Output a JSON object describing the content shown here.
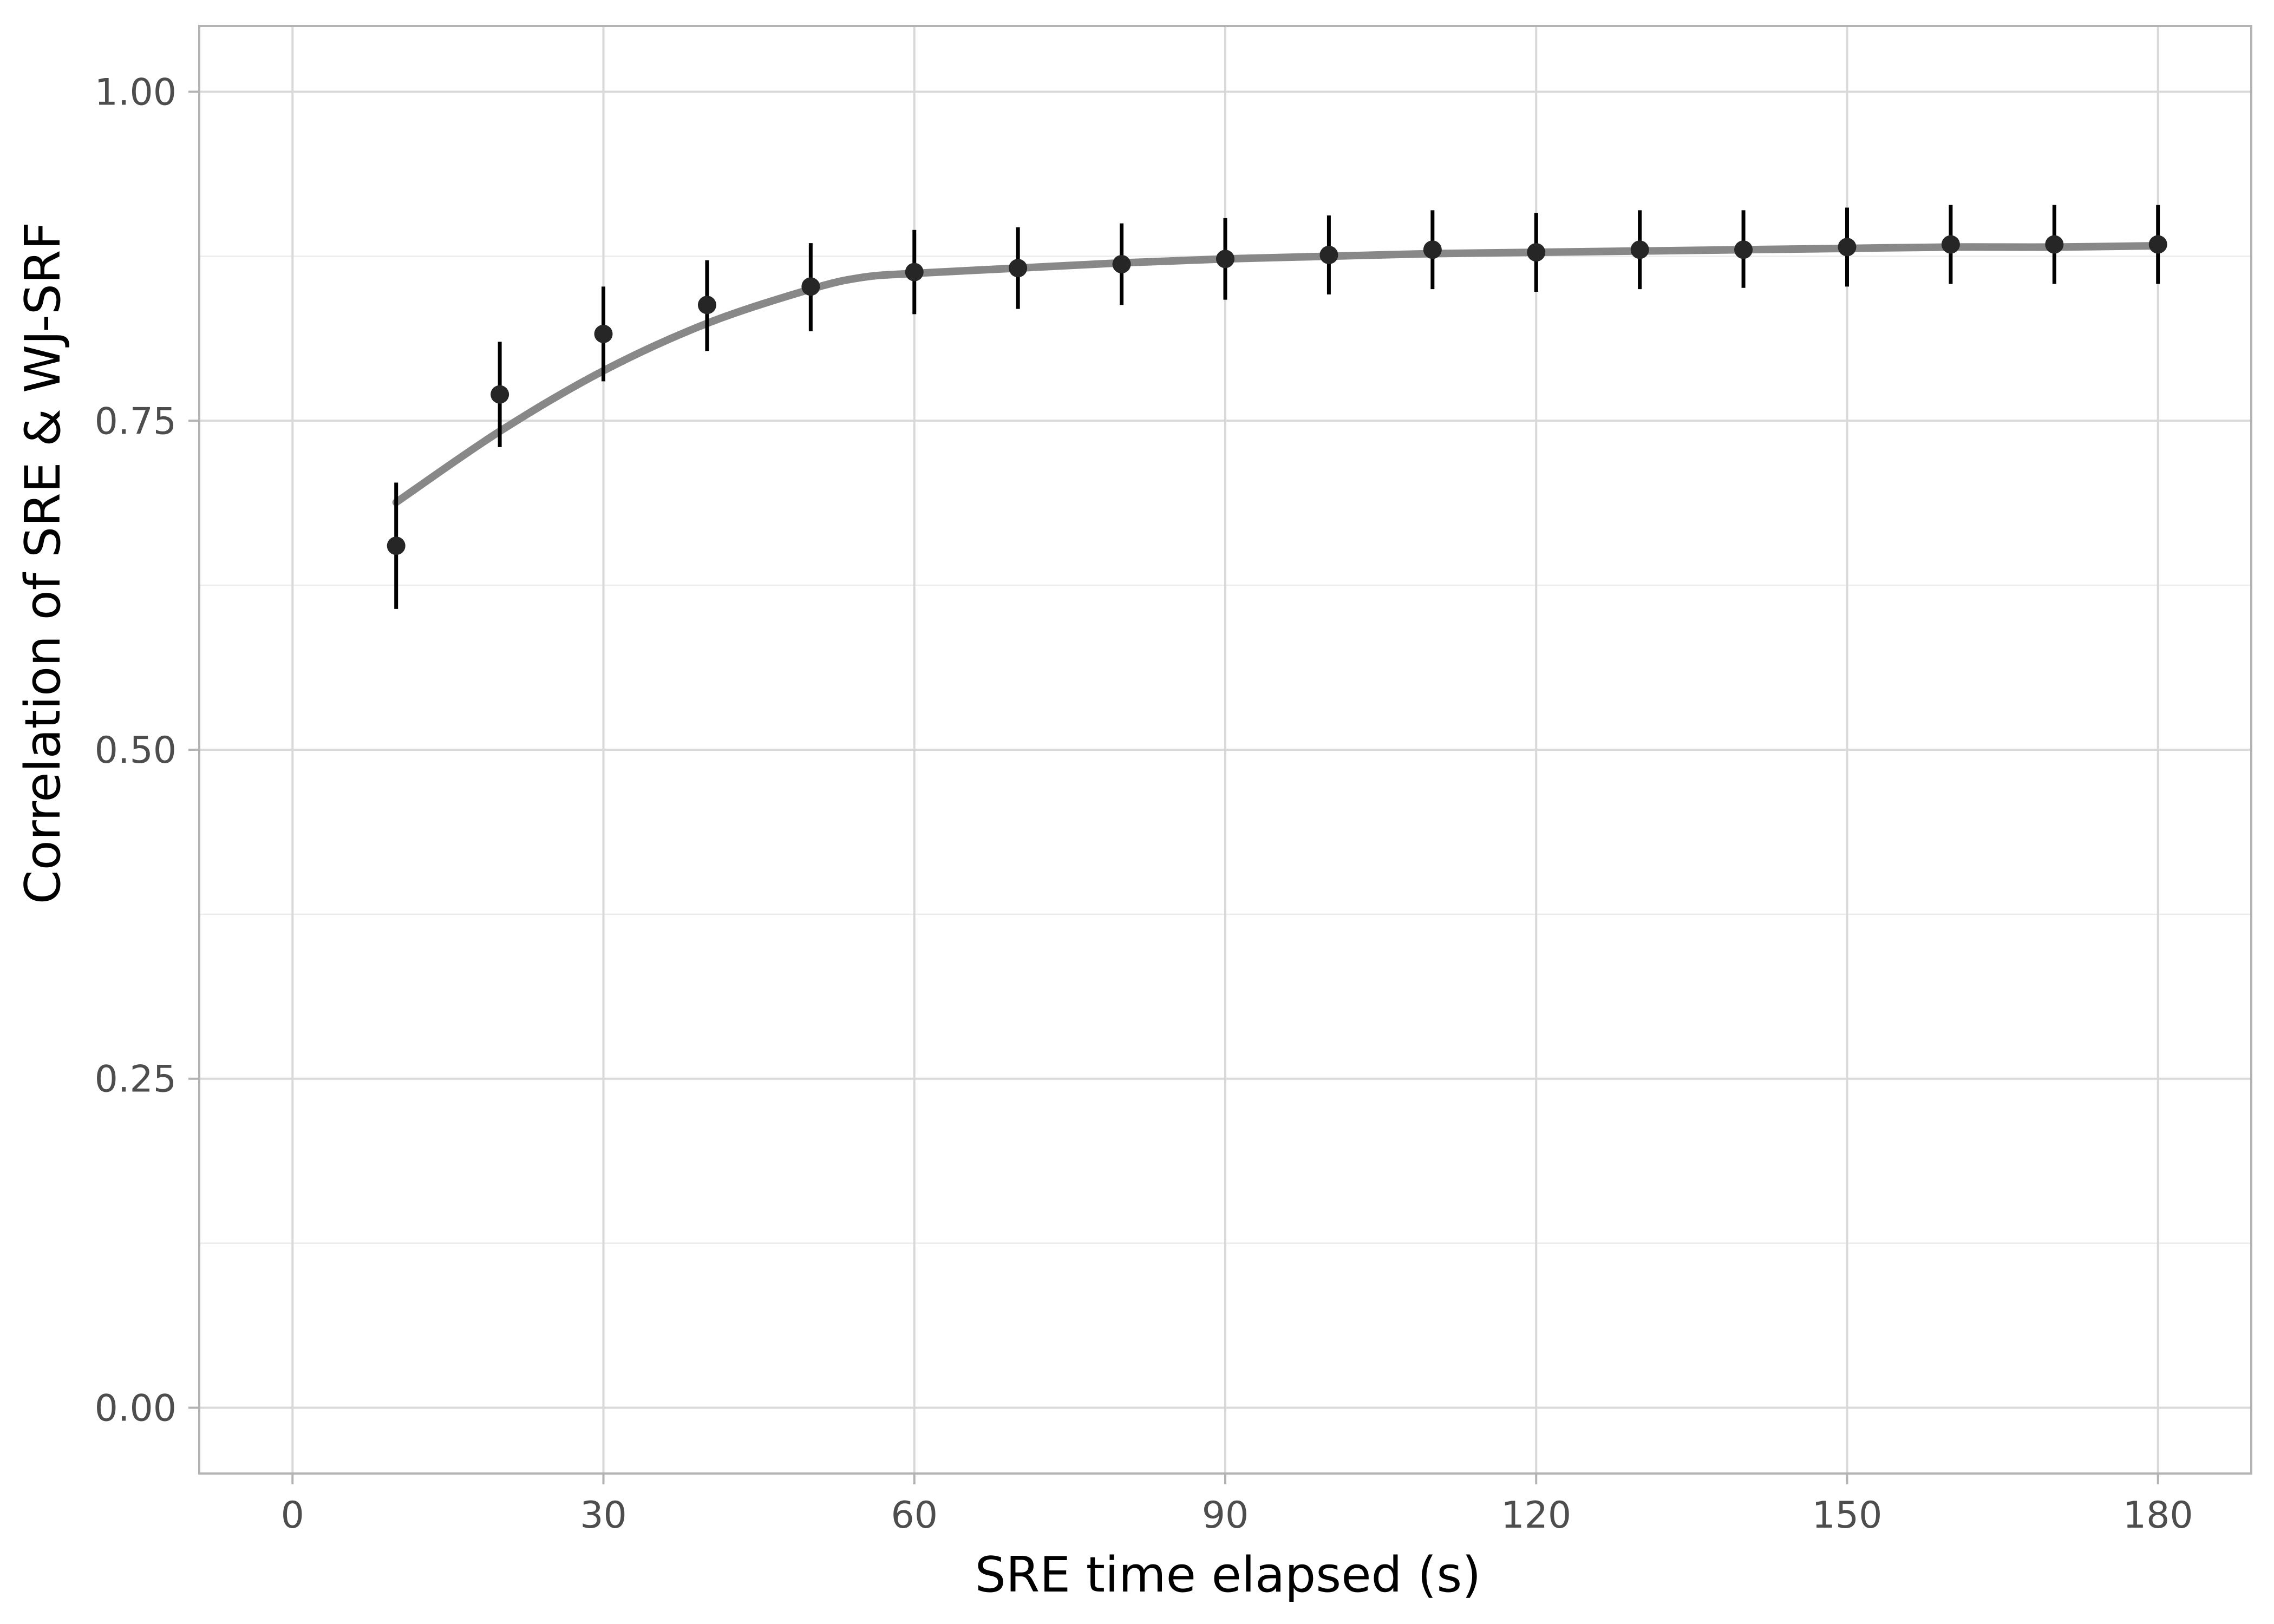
{
  "chart_data": {
    "type": "scatter",
    "title": "",
    "xlabel": "SRE time elapsed (s)",
    "ylabel": "Correlation of SRE & WJ-SRF",
    "xlim": [
      -9,
      189
    ],
    "ylim": [
      -0.05,
      1.05
    ],
    "xticks": [
      0,
      30,
      60,
      90,
      120,
      150,
      180
    ],
    "xtick_labels": [
      "0",
      "30",
      "60",
      "90",
      "120",
      "150",
      "180"
    ],
    "yticks": [
      0,
      0.25,
      0.5,
      0.75,
      1.0
    ],
    "ytick_labels": [
      "0.00",
      "0.25",
      "0.50",
      "0.75",
      "1.00"
    ],
    "y_minor_gridlines": [
      0.125,
      0.375,
      0.625,
      0.875
    ],
    "grid": true,
    "legend": "none",
    "series": [
      {
        "kind": "points_with_errorbars",
        "color": "#262626",
        "x": [
          10,
          20,
          30,
          40,
          50,
          60,
          70,
          80,
          90,
          100,
          110,
          120,
          130,
          140,
          150,
          160,
          170,
          180
        ],
        "y": [
          0.655,
          0.77,
          0.816,
          0.838,
          0.852,
          0.863,
          0.866,
          0.869,
          0.873,
          0.876,
          0.88,
          0.878,
          0.88,
          0.88,
          0.882,
          0.884,
          0.884,
          0.884
        ],
        "ymin": [
          0.607,
          0.73,
          0.78,
          0.803,
          0.818,
          0.831,
          0.835,
          0.838,
          0.842,
          0.846,
          0.85,
          0.848,
          0.85,
          0.851,
          0.852,
          0.854,
          0.854,
          0.854
        ],
        "ymax": [
          0.703,
          0.81,
          0.852,
          0.872,
          0.885,
          0.895,
          0.897,
          0.9,
          0.904,
          0.906,
          0.91,
          0.908,
          0.91,
          0.91,
          0.912,
          0.914,
          0.914,
          0.914
        ]
      },
      {
        "kind": "smooth_line",
        "color": "#888888",
        "x": [
          10,
          20,
          30,
          40,
          50,
          55,
          60,
          70,
          80,
          90,
          100,
          110,
          120,
          130,
          140,
          150,
          160,
          170,
          180
        ],
        "y": [
          0.688,
          0.742,
          0.788,
          0.824,
          0.85,
          0.859,
          0.862,
          0.866,
          0.87,
          0.873,
          0.875,
          0.877,
          0.878,
          0.879,
          0.88,
          0.881,
          0.882,
          0.882,
          0.883
        ]
      }
    ]
  }
}
